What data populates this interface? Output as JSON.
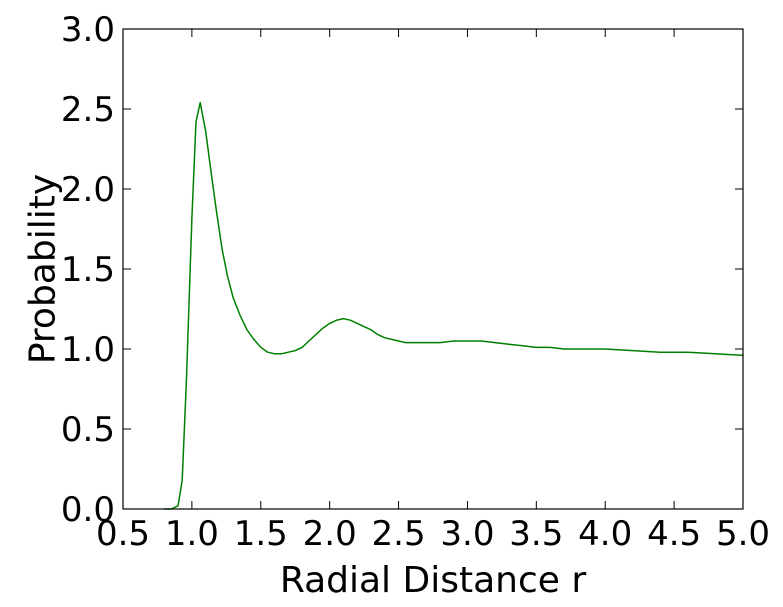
{
  "chart_data": {
    "type": "line",
    "title": "",
    "xlabel": "Radial Distance r",
    "ylabel": "Probability",
    "xlim": [
      0.5,
      5.0
    ],
    "ylim": [
      0.0,
      3.0
    ],
    "x_ticks": [
      "0.5",
      "1.0",
      "1.5",
      "2.0",
      "2.5",
      "3.0",
      "3.5",
      "4.0",
      "4.5",
      "5.0"
    ],
    "y_ticks": [
      "0.0",
      "0.5",
      "1.0",
      "1.5",
      "2.0",
      "2.5",
      "3.0"
    ],
    "grid": false,
    "legend": "none",
    "series": [
      {
        "color": "#008000",
        "x": [
          0.8,
          0.85,
          0.9,
          0.93,
          0.96,
          1.0,
          1.03,
          1.06,
          1.1,
          1.14,
          1.18,
          1.22,
          1.26,
          1.3,
          1.35,
          1.4,
          1.45,
          1.5,
          1.55,
          1.6,
          1.65,
          1.7,
          1.75,
          1.8,
          1.85,
          1.9,
          1.95,
          2.0,
          2.05,
          2.1,
          2.15,
          2.2,
          2.25,
          2.3,
          2.35,
          2.4,
          2.45,
          2.5,
          2.55,
          2.6,
          2.7,
          2.8,
          2.9,
          3.0,
          3.1,
          3.2,
          3.3,
          3.4,
          3.5,
          3.6,
          3.7,
          3.8,
          3.9,
          4.0,
          4.2,
          4.4,
          4.6,
          4.8,
          5.0
        ],
        "y": [
          0.0,
          0.0,
          0.02,
          0.18,
          0.8,
          1.82,
          2.42,
          2.54,
          2.36,
          2.1,
          1.85,
          1.62,
          1.45,
          1.32,
          1.21,
          1.12,
          1.06,
          1.01,
          0.98,
          0.97,
          0.97,
          0.98,
          0.99,
          1.01,
          1.05,
          1.09,
          1.13,
          1.16,
          1.18,
          1.19,
          1.18,
          1.16,
          1.14,
          1.12,
          1.09,
          1.07,
          1.06,
          1.05,
          1.04,
          1.04,
          1.04,
          1.04,
          1.05,
          1.05,
          1.05,
          1.04,
          1.03,
          1.02,
          1.01,
          1.01,
          1.0,
          1.0,
          1.0,
          1.0,
          0.99,
          0.98,
          0.98,
          0.97,
          0.96
        ]
      }
    ]
  }
}
